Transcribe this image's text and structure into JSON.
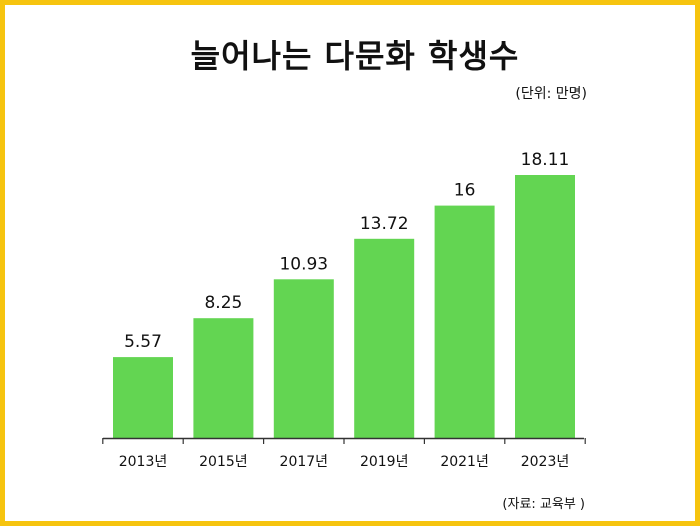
{
  "title": "늘어나는 다문화 학생수",
  "unit_note": "(단위: 만명)",
  "source_note": "(자료: 교육부 )",
  "colors": {
    "bar": "#63d552",
    "border": "#f6c40f",
    "axis": "#333333"
  },
  "chart_data": {
    "type": "bar",
    "title": "늘어나는 다문화 학생수",
    "xlabel": "",
    "ylabel": "",
    "categories": [
      "2013년",
      "2015년",
      "2017년",
      "2019년",
      "2021년",
      "2023년"
    ],
    "values": [
      5.57,
      8.25,
      10.93,
      13.72,
      16,
      18.11
    ],
    "value_labels": [
      "5.57",
      "8.25",
      "10.93",
      "13.72",
      "16",
      "18.11"
    ],
    "ylim": [
      0,
      18.11
    ],
    "grid": false,
    "legend": "none"
  }
}
